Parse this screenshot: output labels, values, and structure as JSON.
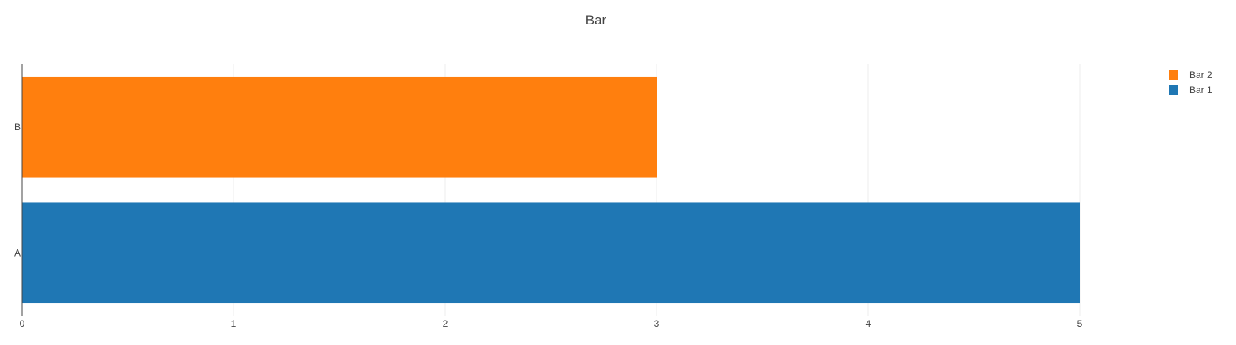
{
  "chart_data": {
    "type": "bar",
    "orientation": "horizontal",
    "title": "Bar",
    "xlabel": "",
    "ylabel": "",
    "categories": [
      "A",
      "B"
    ],
    "xlim": [
      0,
      5
    ],
    "xticks": [
      "0",
      "1",
      "2",
      "3",
      "4",
      "5"
    ],
    "grid": true,
    "legend_position": "top-right",
    "series": [
      {
        "name": "Bar 1",
        "category": "A",
        "value": 5,
        "color": "#1f77b4"
      },
      {
        "name": "Bar 2",
        "category": "B",
        "value": 3,
        "color": "#ff7f0e"
      }
    ],
    "legend": [
      {
        "name": "Bar 2",
        "color": "#ff7f0e"
      },
      {
        "name": "Bar 1",
        "color": "#1f77b4"
      }
    ]
  }
}
